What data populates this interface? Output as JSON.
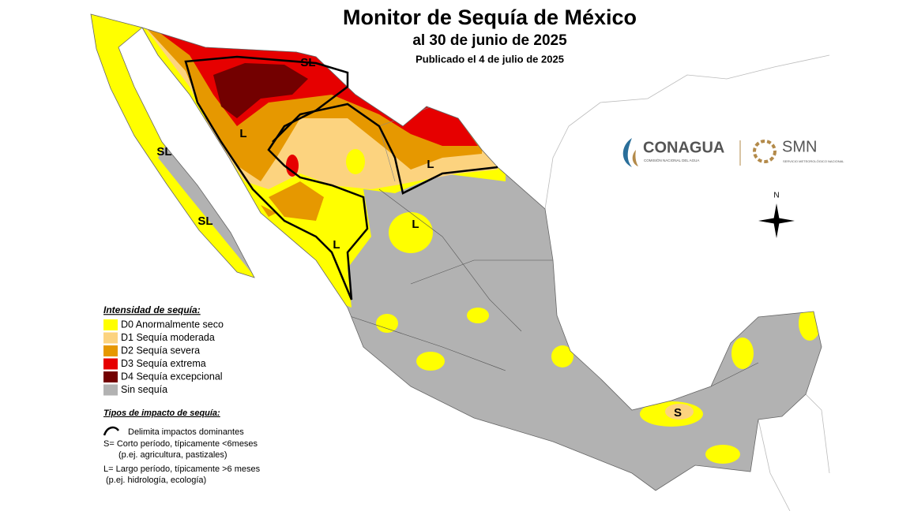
{
  "header": {
    "title": "Monitor de Sequía de México",
    "subtitle": "al 30 de junio de 2025",
    "published": "Publicado el 4 de julio de 2025"
  },
  "legend": {
    "title": "Intensidad de sequía:",
    "items": [
      {
        "label": "D0 Anormalmente seco",
        "color": "#ffff00"
      },
      {
        "label": "D1 Sequía moderada",
        "color": "#fcd37f"
      },
      {
        "label": "D2 Sequía severa",
        "color": "#e69800"
      },
      {
        "label": "D3 Sequía extrema",
        "color": "#e60000"
      },
      {
        "label": "D4 Sequía excepcional",
        "color": "#730000"
      },
      {
        "label": "Sin sequía",
        "color": "#b2b2b2"
      }
    ]
  },
  "impacts": {
    "title": "Tipos de impacto de sequía:",
    "line": "Delimita impactos dominantes",
    "short": "S= Corto período, típicamente <6meses",
    "short_example": "(p.ej. agricultura, pastizales)",
    "long": "L= Largo período, típicamente >6 meses",
    "long_example": "(p.ej. hidrología, ecología)"
  },
  "map_labels": [
    "SL",
    "L",
    "SL",
    "SL",
    "L",
    "L",
    "L",
    "S"
  ],
  "logos": {
    "conagua": "CONAGUA",
    "conagua_sub": "COMISIÓN NACIONAL DEL AGUA",
    "smn": "SMN",
    "smn_sub": "SERVICIO METEOROLÓGICO NACIONAL"
  },
  "compass": "N"
}
